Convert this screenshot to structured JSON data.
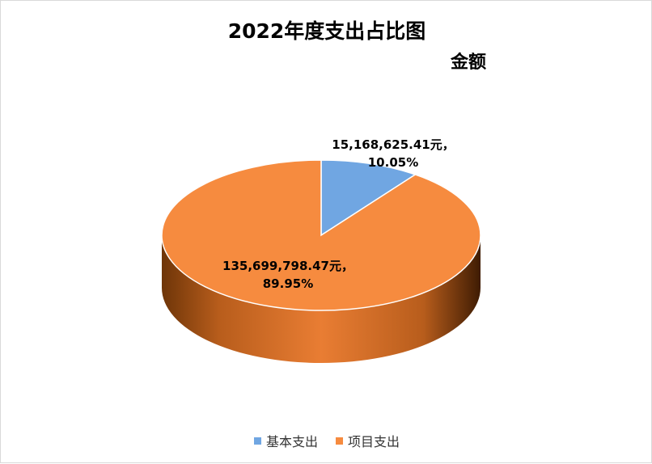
{
  "chart_data": {
    "type": "pie",
    "title": "2022年度支出占比图",
    "subtitle": "金额",
    "slices": [
      {
        "name": "基本支出",
        "value": 15168625.41,
        "value_label": "15,168,625.41元，",
        "percent_label": "10.05%",
        "color": "#70a6e2"
      },
      {
        "name": "项目支出",
        "value": 135699798.47,
        "value_label": "135,699,798.47元，",
        "percent_label": "89.95%",
        "color": "#f68b3f"
      }
    ],
    "legend_position": "bottom",
    "style": "3d"
  }
}
